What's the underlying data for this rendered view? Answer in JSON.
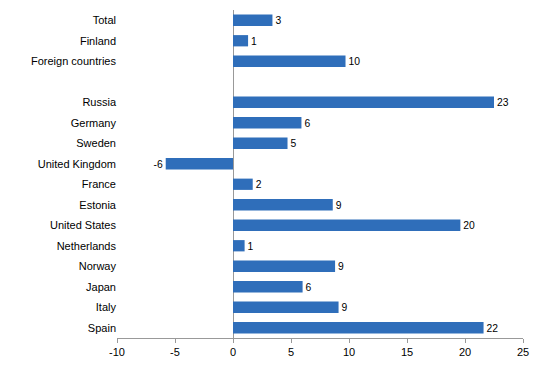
{
  "chart_data": {
    "type": "bar",
    "orientation": "horizontal",
    "categories": [
      "Total",
      "Finland",
      "Foreign countries",
      null,
      "Russia",
      "Germany",
      "Sweden",
      "United Kingdom",
      "France",
      "Estonia",
      "United States",
      "Netherlands",
      "Norway",
      "Japan",
      "Italy",
      "Spain"
    ],
    "values": [
      3.4,
      1.3,
      9.7,
      null,
      22.5,
      5.9,
      4.7,
      -5.8,
      1.7,
      8.6,
      19.6,
      1.0,
      8.8,
      6.0,
      9.1,
      21.6
    ],
    "value_labels": [
      "3",
      "1",
      "10",
      null,
      "23",
      "6",
      "5",
      "-6",
      "2",
      "9",
      "20",
      "1",
      "9",
      "6",
      "9",
      "22"
    ],
    "color": "#2f6eba",
    "xlim": [
      -10,
      25
    ],
    "xticks": [
      -10,
      -5,
      0,
      5,
      10,
      15,
      20,
      25
    ],
    "grid": false,
    "data_labels": true
  }
}
